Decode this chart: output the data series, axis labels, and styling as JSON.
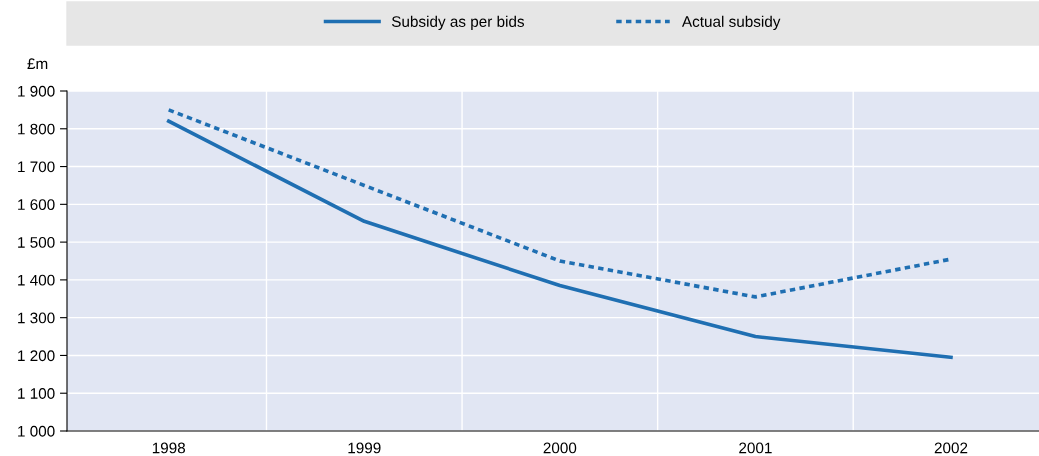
{
  "chart_data": {
    "type": "line",
    "ylabel": "£m",
    "categories": [
      "1998",
      "1999",
      "2000",
      "2001",
      "2002"
    ],
    "series": [
      {
        "name": "Subsidy as per bids",
        "color": "#1f6fb2",
        "line_style": "solid",
        "values": [
          1820,
          1555,
          1385,
          1250,
          1195
        ]
      },
      {
        "name": "Actual subsidy",
        "color": "#1f6fb2",
        "line_style": "dotted",
        "values": [
          1850,
          1650,
          1450,
          1355,
          1455
        ]
      }
    ],
    "ylim": [
      1000,
      1900
    ],
    "yticks": [
      {
        "value": 1000,
        "label": "1 000"
      },
      {
        "value": 1100,
        "label": "1 100"
      },
      {
        "value": 1200,
        "label": "1 200"
      },
      {
        "value": 1300,
        "label": "1 300"
      },
      {
        "value": 1400,
        "label": "1 400"
      },
      {
        "value": 1500,
        "label": "1 500"
      },
      {
        "value": 1600,
        "label": "1 600"
      },
      {
        "value": 1700,
        "label": "1 700"
      },
      {
        "value": 1800,
        "label": "1 800"
      },
      {
        "value": 1900,
        "label": "1 900"
      }
    ],
    "grid": true,
    "legend": "top",
    "marker": "none"
  }
}
